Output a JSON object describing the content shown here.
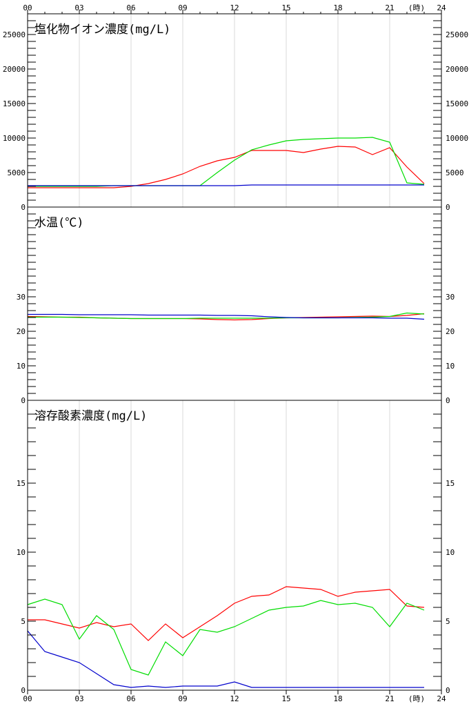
{
  "hour_unit": "(時)",
  "x_ticks": [
    "00",
    "03",
    "06",
    "09",
    "12",
    "15",
    "18",
    "21",
    "24"
  ],
  "colors": {
    "red": "#ff0000",
    "green": "#00dd00",
    "blue": "#0000cc"
  },
  "chart_data": [
    {
      "type": "line",
      "title": "塩化物イオン濃度(mg/L)",
      "xlim": [
        0,
        24
      ],
      "ylim": [
        0,
        28000
      ],
      "y_ticks": [
        "0",
        "5000",
        "10000",
        "15000",
        "20000",
        "25000"
      ],
      "y_tick_values": [
        0,
        5000,
        10000,
        15000,
        20000,
        25000
      ],
      "grid": "vertical",
      "x": [
        0,
        1,
        2,
        3,
        4,
        5,
        6,
        7,
        8,
        9,
        10,
        11,
        12,
        13,
        14,
        15,
        16,
        17,
        18,
        19,
        20,
        21,
        22,
        23
      ],
      "series": [
        {
          "color": "#ff0000",
          "values": [
            2800,
            2800,
            2800,
            2800,
            2800,
            2800,
            3000,
            3400,
            4000,
            4800,
            5900,
            6700,
            7200,
            8200,
            8200,
            8200,
            7900,
            8400,
            8800,
            8700,
            7600,
            8600,
            5800,
            3400
          ]
        },
        {
          "color": "#00dd00",
          "values": [
            3000,
            3000,
            3000,
            3000,
            3000,
            3100,
            3100,
            3100,
            3100,
            3100,
            3100,
            5000,
            6800,
            8300,
            9000,
            9600,
            9800,
            9900,
            10000,
            10000,
            10100,
            9400,
            3500,
            3300
          ]
        },
        {
          "color": "#0000cc",
          "values": [
            3100,
            3100,
            3100,
            3100,
            3100,
            3100,
            3100,
            3100,
            3100,
            3100,
            3100,
            3100,
            3100,
            3200,
            3200,
            3200,
            3200,
            3200,
            3200,
            3200,
            3200,
            3200,
            3200,
            3200
          ]
        }
      ]
    },
    {
      "type": "line",
      "title": "水温(℃)",
      "xlim": [
        0,
        24
      ],
      "ylim": [
        0,
        56
      ],
      "y_ticks": [
        "0",
        "10",
        "20",
        "30"
      ],
      "y_tick_values": [
        0,
        10,
        20,
        30
      ],
      "grid": "none",
      "x": [
        0,
        1,
        2,
        3,
        4,
        5,
        6,
        7,
        8,
        9,
        10,
        11,
        12,
        13,
        14,
        15,
        16,
        17,
        18,
        19,
        20,
        21,
        22,
        23
      ],
      "series": [
        {
          "color": "#ff0000",
          "values": [
            24.3,
            24.2,
            24.1,
            24.1,
            23.9,
            23.8,
            23.7,
            23.7,
            23.7,
            23.7,
            23.6,
            23.4,
            23.3,
            23.4,
            23.7,
            23.9,
            24.0,
            24.1,
            24.2,
            24.3,
            24.4,
            24.3,
            24.6,
            25.1
          ]
        },
        {
          "color": "#00dd00",
          "values": [
            24.1,
            24.1,
            24.1,
            24.0,
            23.9,
            23.8,
            23.7,
            23.7,
            23.7,
            23.7,
            23.8,
            23.8,
            23.8,
            23.8,
            23.8,
            23.9,
            23.9,
            23.9,
            23.9,
            24.0,
            24.1,
            24.3,
            25.3,
            25.0
          ]
        },
        {
          "color": "#0000cc",
          "values": [
            24.9,
            24.9,
            24.9,
            24.8,
            24.8,
            24.8,
            24.8,
            24.7,
            24.7,
            24.7,
            24.7,
            24.6,
            24.6,
            24.5,
            24.2,
            24.0,
            23.9,
            23.9,
            23.9,
            23.9,
            23.9,
            23.8,
            23.8,
            23.5
          ]
        }
      ]
    },
    {
      "type": "line",
      "title": "溶存酸素濃度(mg/L)",
      "xlim": [
        0,
        24
      ],
      "ylim": [
        0,
        21
      ],
      "y_ticks": [
        "0",
        "5",
        "10",
        "15"
      ],
      "y_tick_values": [
        0,
        5,
        10,
        15
      ],
      "grid": "vertical",
      "x": [
        0,
        1,
        2,
        3,
        4,
        5,
        6,
        7,
        8,
        9,
        10,
        11,
        12,
        13,
        14,
        15,
        16,
        17,
        18,
        19,
        20,
        21,
        22,
        23
      ],
      "series": [
        {
          "color": "#ff0000",
          "values": [
            5.1,
            5.1,
            4.8,
            4.5,
            4.9,
            4.6,
            4.8,
            3.6,
            4.8,
            3.8,
            4.6,
            5.4,
            6.3,
            6.8,
            6.9,
            7.5,
            7.4,
            7.3,
            6.8,
            7.1,
            7.2,
            7.3,
            6.1,
            6.0
          ]
        },
        {
          "color": "#00dd00",
          "values": [
            6.2,
            6.6,
            6.2,
            3.7,
            5.4,
            4.4,
            1.5,
            1.1,
            3.5,
            2.5,
            4.4,
            4.2,
            4.6,
            5.2,
            5.8,
            6.0,
            6.1,
            6.5,
            6.2,
            6.3,
            6.0,
            4.6,
            6.3,
            5.8
          ]
        },
        {
          "color": "#0000cc",
          "values": [
            4.3,
            2.8,
            2.4,
            2.0,
            1.2,
            0.4,
            0.2,
            0.3,
            0.2,
            0.3,
            0.3,
            0.3,
            0.6,
            0.2,
            0.2,
            0.2,
            0.2,
            0.2,
            0.2,
            0.2,
            0.2,
            0.2,
            0.2,
            0.2
          ]
        }
      ]
    }
  ]
}
